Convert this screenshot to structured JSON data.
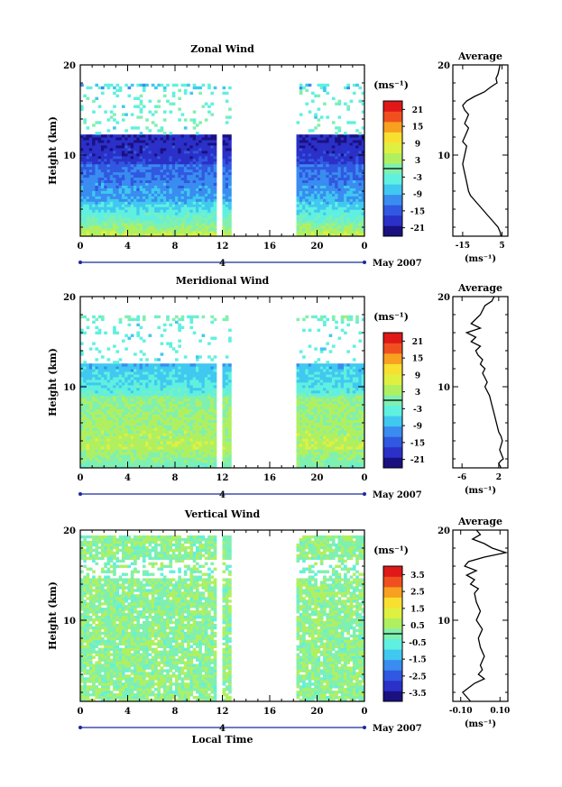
{
  "chart_data": [
    {
      "type": "heatmap",
      "title": "Zonal Wind",
      "ylabel": "Height (km)",
      "xticks": [
        "0",
        "4",
        "8",
        "12",
        "16",
        "20",
        "0"
      ],
      "yticks": [
        "10",
        "20"
      ],
      "xlim": [
        0,
        24
      ],
      "ylim": [
        1,
        20
      ],
      "day_label": "4",
      "month_label": "May 2007",
      "data_gap_hours": [
        [
          12.8,
          18.2
        ]
      ],
      "colorbar": {
        "unit": "(ms⁻¹)",
        "ticks": [
          "21",
          "15",
          "9",
          "3",
          "-3",
          "-9",
          "-15",
          "-21"
        ],
        "range": [
          -24,
          24
        ]
      },
      "average_profile": {
        "title": "Average",
        "xlabel": "(ms⁻¹)",
        "xticks": [
          "-15",
          "5"
        ],
        "xlim": [
          -20,
          8
        ],
        "yticks": [
          "10",
          "20"
        ],
        "x": [
          4,
          3.5,
          3,
          2,
          2.5,
          1,
          -1,
          -4,
          -9,
          -13,
          -15,
          -14,
          -12,
          -13,
          -14,
          -12,
          -13,
          -14,
          -15,
          -13,
          -14,
          -15,
          -14,
          -13,
          -12,
          -11,
          -9,
          -7,
          -5,
          -3,
          -1,
          1,
          3,
          4,
          4.5
        ],
        "y": [
          20,
          19.5,
          19,
          18.5,
          18,
          17.8,
          17.5,
          17,
          16.5,
          16,
          15.5,
          15,
          14.5,
          14,
          13.5,
          13,
          12.5,
          12,
          11.5,
          11,
          10,
          9,
          8,
          7,
          6,
          5.5,
          5,
          4.5,
          4,
          3.5,
          3,
          2.5,
          2,
          1.5,
          1
        ]
      }
    },
    {
      "type": "heatmap",
      "title": "Meridional Wind",
      "ylabel": "Height (km)",
      "xticks": [
        "0",
        "4",
        "8",
        "12",
        "16",
        "20",
        "0"
      ],
      "yticks": [
        "10",
        "20"
      ],
      "xlim": [
        0,
        24
      ],
      "ylim": [
        1,
        20
      ],
      "day_label": "4",
      "month_label": "May 2007",
      "data_gap_hours": [
        [
          12.8,
          18.2
        ]
      ],
      "colorbar": {
        "unit": "(ms⁻¹)",
        "ticks": [
          "21",
          "15",
          "9",
          "3",
          "-3",
          "-9",
          "-15",
          "-21"
        ],
        "range": [
          -24,
          24
        ]
      },
      "average_profile": {
        "title": "Average",
        "xlabel": "(ms⁻¹)",
        "xticks": [
          "-6",
          "2"
        ],
        "xlim": [
          -8,
          4
        ],
        "yticks": [
          "10",
          "20"
        ],
        "x": [
          1,
          0.5,
          -1,
          -2,
          -4,
          -2,
          -5,
          -3,
          -4,
          -2,
          -3,
          -2.5,
          -1.5,
          -2,
          -1,
          -1.5,
          -1,
          -0.5,
          -1,
          0,
          0.5,
          1,
          1.5,
          2,
          2.5,
          2.8,
          2.5,
          2.2,
          2.6,
          3,
          2.5,
          2,
          2.5
        ],
        "y": [
          20,
          19.5,
          19,
          18,
          17,
          16.5,
          16,
          15.5,
          15,
          14.5,
          14,
          13.5,
          13,
          12.5,
          12,
          11.5,
          11,
          10.5,
          10,
          9,
          8,
          7,
          6,
          5,
          4.5,
          4,
          3.5,
          3,
          2.5,
          2,
          1.8,
          1.5,
          1
        ]
      }
    },
    {
      "type": "heatmap",
      "title": "Vertical Wind",
      "ylabel": "Height (km)",
      "xlabel": "Local Time",
      "xticks": [
        "0",
        "4",
        "8",
        "12",
        "16",
        "20",
        "0"
      ],
      "yticks": [
        "10",
        "20"
      ],
      "xlim": [
        0,
        24
      ],
      "ylim": [
        1,
        20
      ],
      "day_label": "4",
      "month_label": "May 2007",
      "data_gap_hours": [
        [
          12.8,
          18.2
        ]
      ],
      "colorbar": {
        "unit": "(ms⁻¹)",
        "ticks": [
          "3.5",
          "2.5",
          "1.5",
          "0.5",
          "-0.5",
          "-1.5",
          "-2.5",
          "-3.5"
        ],
        "range": [
          -4,
          4
        ]
      },
      "average_profile": {
        "title": "Average",
        "xlabel": "(ms⁻¹)",
        "xticks": [
          "-0.10",
          "0.10"
        ],
        "xlim": [
          -0.14,
          0.14
        ],
        "yticks": [
          "10",
          "20"
        ],
        "x": [
          -0.02,
          0.0,
          -0.04,
          0.02,
          0.06,
          0.13,
          0.02,
          -0.06,
          -0.08,
          -0.02,
          -0.07,
          -0.03,
          -0.05,
          -0.01,
          -0.03,
          -0.02,
          0.0,
          -0.02,
          0.01,
          -0.01,
          0.0,
          0.02,
          0.0,
          0.01,
          -0.01,
          0.02,
          -0.03,
          -0.06,
          -0.09,
          -0.05
        ],
        "y": [
          20,
          19.5,
          19,
          18.5,
          18,
          17.5,
          17,
          16.5,
          16,
          15.5,
          15,
          14.5,
          14,
          13.5,
          13,
          12,
          11,
          10,
          9,
          8,
          7,
          6,
          5,
          4.5,
          4,
          3.5,
          3,
          2.5,
          2,
          1
        ]
      }
    }
  ],
  "colors": {
    "scale": [
      "#1a1080",
      "#2a30c8",
      "#3058e0",
      "#3a8cf0",
      "#40c8f0",
      "#60f0e0",
      "#80f0b0",
      "#b0f060",
      "#e0f040",
      "#f8e030",
      "#f8a020",
      "#f05020",
      "#e01818"
    ]
  }
}
